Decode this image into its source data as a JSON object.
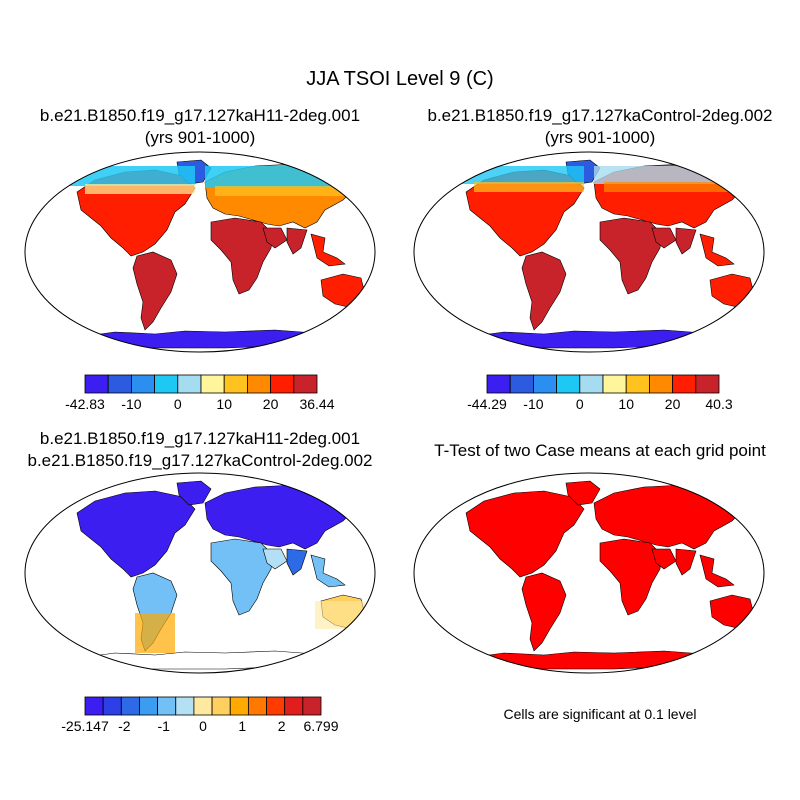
{
  "figure": {
    "title": "JJA TSOI Level 9 (C)"
  },
  "panels": [
    {
      "id": "case",
      "title_line1": "b.e21.B1850.f19_g17.127kaH11-2deg.001",
      "title_line2": "(yrs 901-1000)",
      "field_description": "map of JJA soil temperature, warm tropics/subtropics, cold high latitudes",
      "colorbar": {
        "labels": [
          "-42.83",
          "-10",
          "0",
          "10",
          "20",
          "36.44"
        ],
        "colors": [
          "#3d1ef0",
          "#2d5be0",
          "#2a8ff0",
          "#1ec8f5",
          "#a6dcf0",
          "#fff59a",
          "#ffc21e",
          "#ff8a00",
          "#ff1e00",
          "#c8232a"
        ]
      }
    },
    {
      "id": "control",
      "title_line1": "b.e21.B1850.f19_g17.127kaControl-2deg.002",
      "title_line2": "(yrs 901-1000)",
      "colorbar": {
        "labels": [
          "-44.29",
          "-10",
          "0",
          "10",
          "20",
          "40.3"
        ],
        "colors": [
          "#3d1ef0",
          "#2d5be0",
          "#2a8ff0",
          "#1ec8f5",
          "#a6dcf0",
          "#fff59a",
          "#ffc21e",
          "#ff8a00",
          "#ff1e00",
          "#c8232a"
        ]
      }
    },
    {
      "id": "difference",
      "title_line1": "b.e21.B1850.f19_g17.127kaH11-2deg.001",
      "title_line2": "b.e21.B1850.f19_g17.127kaControl-2deg.002",
      "colorbar": {
        "labels": [
          "-25.147",
          "-2",
          "-1",
          "0",
          "1",
          "2",
          "6.799"
        ],
        "colors": [
          "#3d1ef0",
          "#2d3fe6",
          "#2d6be6",
          "#3c9cf0",
          "#72c0f5",
          "#b4e0f5",
          "#ffe9a0",
          "#ffd060",
          "#ffaa00",
          "#ff7800",
          "#ff3c00",
          "#e01e1e",
          "#c8232a"
        ]
      }
    },
    {
      "id": "ttest",
      "title_line1": "T-Test of two Case means at each grid point",
      "note": "Cells are significant at 0.1 level",
      "significant_color": "#ff0000"
    }
  ]
}
